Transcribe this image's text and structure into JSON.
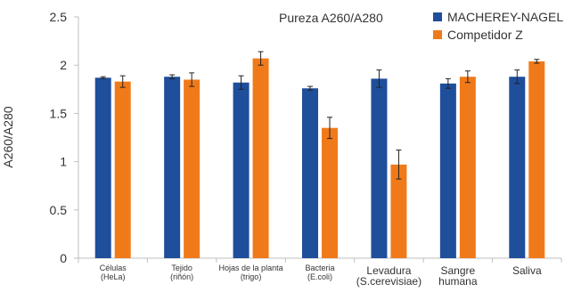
{
  "chart_data": {
    "type": "bar",
    "title": "Pureza A260/A280",
    "xlabel": "",
    "ylabel": "A260/A280",
    "ylim": [
      0,
      2.5
    ],
    "yticks": [
      0,
      0.5,
      1,
      1.5,
      2,
      2.5
    ],
    "ytick_labels": [
      "0",
      "0.5",
      "1",
      "1.5",
      "2",
      "2.5"
    ],
    "grid": false,
    "legend_position": "top-right",
    "categories": [
      [
        "Células",
        "(HeLa)"
      ],
      [
        "Tejido",
        "(riñón)"
      ],
      [
        "Hojas de la planta",
        "(trigo)"
      ],
      [
        "Bacteria",
        "(E.coli)"
      ],
      [
        "Levadura",
        "(S.cerevisiae)"
      ],
      [
        "Sangre",
        "humana"
      ],
      [
        "Saliva"
      ]
    ],
    "category_label_style": [
      "small",
      "small",
      "small",
      "small",
      "large",
      "large",
      "large"
    ],
    "series": [
      {
        "name": "MACHEREY-NAGEL",
        "color": "#1f4e9a",
        "values": [
          1.87,
          1.88,
          1.82,
          1.76,
          1.86,
          1.81,
          1.88
        ],
        "errors": [
          0.01,
          0.02,
          0.07,
          0.02,
          0.09,
          0.05,
          0.07
        ]
      },
      {
        "name": "Competidor Z",
        "color": "#f07a1a",
        "values": [
          1.83,
          1.85,
          2.07,
          1.35,
          0.97,
          1.88,
          2.04
        ],
        "errors": [
          0.06,
          0.07,
          0.07,
          0.11,
          0.15,
          0.06,
          0.02
        ]
      }
    ]
  }
}
